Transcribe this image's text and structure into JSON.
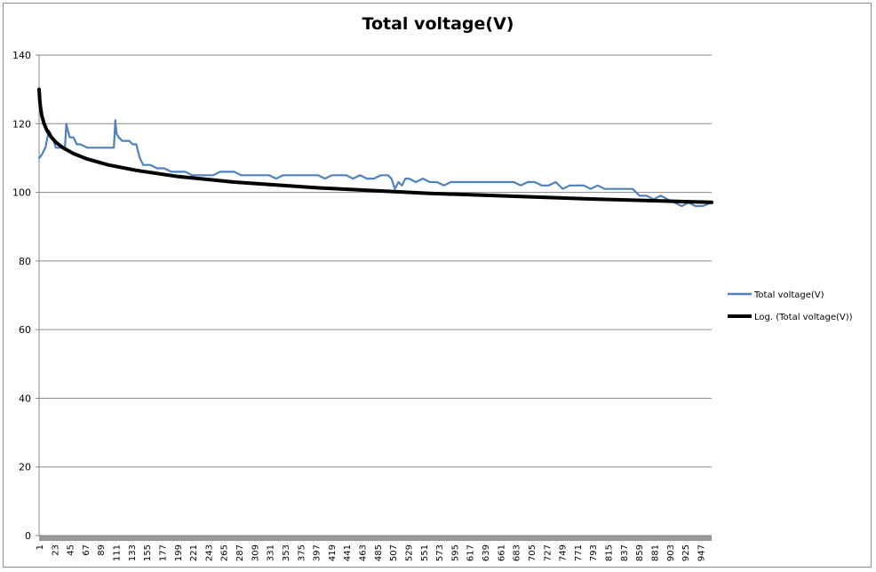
{
  "chart_data": {
    "type": "line",
    "title": "Total voltage(V)",
    "xlabel": "",
    "ylabel": "",
    "ylim": [
      0,
      140
    ],
    "yticks": [
      0,
      20,
      40,
      60,
      80,
      100,
      120,
      140
    ],
    "xlim": [
      1,
      963
    ],
    "xtick_labels": [
      "1",
      "23",
      "45",
      "67",
      "89",
      "111",
      "133",
      "155",
      "177",
      "199",
      "221",
      "243",
      "265",
      "287",
      "309",
      "331",
      "353",
      "375",
      "397",
      "419",
      "441",
      "463",
      "485",
      "507",
      "529",
      "551",
      "573",
      "595",
      "617",
      "639",
      "661",
      "683",
      "705",
      "727",
      "749",
      "771",
      "793",
      "815",
      "837",
      "859",
      "881",
      "903",
      "925",
      "947"
    ],
    "grid": "horizontal",
    "legend_position": "right",
    "colors": {
      "series": "#4f81bd",
      "trend": "#000000",
      "grid": "#868686"
    },
    "series": [
      {
        "name": "Total voltage(V)",
        "color": "#4f81bd",
        "x": [
          1,
          5,
          10,
          15,
          20,
          25,
          30,
          35,
          38,
          40,
          42,
          45,
          50,
          55,
          60,
          70,
          80,
          85,
          90,
          95,
          100,
          105,
          108,
          110,
          112,
          115,
          120,
          125,
          130,
          135,
          140,
          145,
          150,
          155,
          160,
          170,
          180,
          190,
          200,
          210,
          220,
          230,
          240,
          250,
          260,
          270,
          280,
          290,
          300,
          310,
          320,
          330,
          340,
          350,
          360,
          370,
          380,
          390,
          400,
          410,
          420,
          430,
          440,
          450,
          460,
          470,
          480,
          490,
          500,
          505,
          510,
          515,
          520,
          525,
          530,
          540,
          550,
          560,
          570,
          580,
          590,
          600,
          610,
          620,
          630,
          640,
          650,
          660,
          670,
          680,
          690,
          700,
          710,
          720,
          730,
          740,
          750,
          760,
          770,
          780,
          790,
          800,
          810,
          820,
          830,
          840,
          850,
          860,
          870,
          880,
          890,
          900,
          910,
          920,
          930,
          940,
          950,
          963
        ],
        "values": [
          110,
          111,
          113,
          118,
          116,
          113,
          113,
          113,
          113,
          120,
          118,
          116,
          116,
          114,
          114,
          113,
          113,
          113,
          113,
          113,
          113,
          113,
          113,
          121,
          117,
          116,
          115,
          115,
          115,
          114,
          114,
          110,
          108,
          108,
          108,
          107,
          107,
          106,
          106,
          106,
          105,
          105,
          105,
          105,
          106,
          106,
          106,
          105,
          105,
          105,
          105,
          105,
          104,
          105,
          105,
          105,
          105,
          105,
          105,
          104,
          105,
          105,
          105,
          104,
          105,
          104,
          104,
          105,
          105,
          104,
          101,
          103,
          102,
          104,
          104,
          103,
          104,
          103,
          103,
          102,
          103,
          103,
          103,
          103,
          103,
          103,
          103,
          103,
          103,
          103,
          102,
          103,
          103,
          102,
          102,
          103,
          101,
          102,
          102,
          102,
          101,
          102,
          101,
          101,
          101,
          101,
          101,
          99,
          99,
          98,
          99,
          98,
          97,
          96,
          97,
          96,
          96,
          97
        ]
      },
      {
        "name": "Log. (Total voltage(V))",
        "color": "#000000",
        "trendline": "logarithmic",
        "x": [
          1,
          2,
          3,
          5,
          8,
          12,
          18,
          25,
          35,
          50,
          70,
          100,
          140,
          200,
          280,
          400,
          560,
          800,
          963
        ],
        "values": [
          130.0,
          126.7,
          124.7,
          122.3,
          120.1,
          118.1,
          116.2,
          114.6,
          113.0,
          111.3,
          109.7,
          108.0,
          106.4,
          104.6,
          103.0,
          101.3,
          99.7,
          98.0,
          97.1
        ]
      }
    ]
  }
}
